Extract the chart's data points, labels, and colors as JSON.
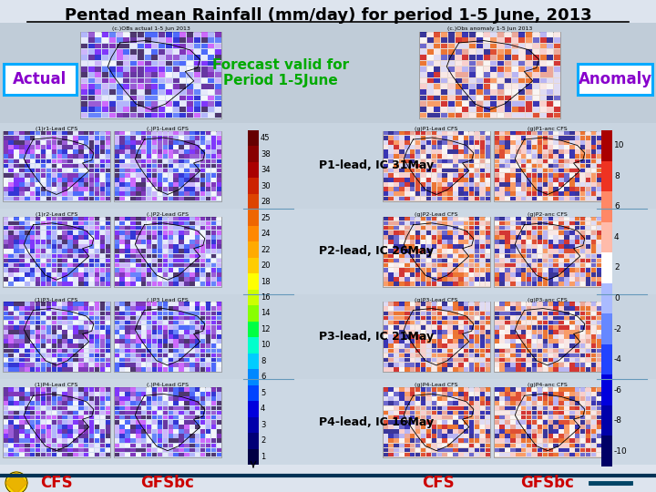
{
  "title": "Pentad mean Rainfall (mm/day) for period 1-5 June, 2013",
  "title_fontsize": 13,
  "background_color": "#c8d0dc",
  "actual_label": "Actual",
  "anomaly_label": "Anomaly",
  "forecast_label": "Forecast valid for\nPeriod 1-5June",
  "p1_label": "P1-lead, IC 31May",
  "p2_label": "P2-lead, IC 26May",
  "p3_label": "P3-lead, IC 21May",
  "p4_label": "P4-lead, IC 16May",
  "cfs_label": "CFS",
  "gfsbc_label": "GFSbc",
  "left_cbar_values": [
    "45",
    "38",
    "34",
    "30",
    "28",
    "25",
    "24",
    "22",
    "20",
    "18",
    "16",
    "14",
    "12",
    "10",
    "8",
    "6",
    "5",
    "4",
    "3",
    "2",
    "1"
  ],
  "right_cbar_values": [
    "10",
    "8",
    "6",
    "4",
    "2",
    "0",
    "-2",
    "-4",
    "-6",
    "-8",
    "-10"
  ],
  "label_box_edge": "#00aaff",
  "actual_text_color": "#8800cc",
  "anomaly_text_color": "#8800cc",
  "forecast_text_color": "#00aa00",
  "lead_text_color": "#000000",
  "bottom_label_color": "#cc0000",
  "colorbar_line_color": "#004466",
  "separator_line_color": "#6699bb",
  "top_panel_bg": "#b8c8d8",
  "map_title_fontsize": 4.5,
  "map_area_left_bg": "#e0e8f4",
  "map_area_right_bg": "#f0e8e4"
}
